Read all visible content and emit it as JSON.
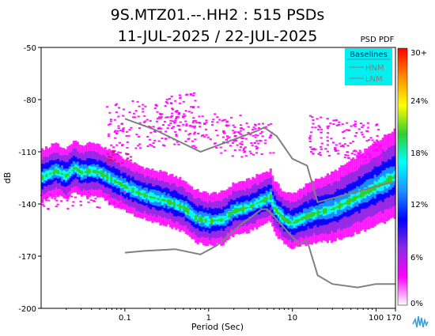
{
  "chart_data": {
    "type": "heatmap",
    "title": "9S.MTZ01.--.HH2 : 515 PSDs",
    "subtitle": "11-JUL-2025 / 22-JUL-2025",
    "xlabel": "Period (Sec)",
    "ylabel": "dB",
    "x_scale": "log",
    "xlim": [
      0.01,
      170
    ],
    "ylim": [
      -200,
      -50
    ],
    "x_ticks": [
      "0.1",
      "1",
      "10",
      "100",
      "170"
    ],
    "x_tick_values": [
      0.1,
      1,
      10,
      100,
      170
    ],
    "y_ticks": [
      "-50",
      "-80",
      "-110",
      "-140",
      "-170",
      "-200"
    ],
    "y_tick_values": [
      -50,
      -80,
      -110,
      -140,
      -170,
      -200
    ],
    "colorbar": {
      "title": "PSD PDF",
      "labels": [
        "30+",
        "24%",
        "18%",
        "12%",
        "6%",
        "0%"
      ],
      "colors": [
        "#ff0000",
        "#ff8c00",
        "#ffff00",
        "#32cd32",
        "#00ffff",
        "#1e90ff",
        "#0000ff",
        "#8a2be2",
        "#ff00ff",
        "#ffffff"
      ]
    },
    "legend": {
      "title": "Baselines",
      "entries": [
        "HNM",
        "LNM"
      ],
      "position": "top-right",
      "background": "#00f0f0"
    },
    "mode_curve": [
      [
        0.01,
        -125
      ],
      [
        0.015,
        -121
      ],
      [
        0.02,
        -124
      ],
      [
        0.025,
        -119
      ],
      [
        0.03,
        -122
      ],
      [
        0.04,
        -121
      ],
      [
        0.05,
        -122
      ],
      [
        0.07,
        -126
      ],
      [
        0.1,
        -130
      ],
      [
        0.15,
        -134
      ],
      [
        0.2,
        -136
      ],
      [
        0.3,
        -138
      ],
      [
        0.5,
        -142
      ],
      [
        0.7,
        -148
      ],
      [
        1.0,
        -150
      ],
      [
        1.5,
        -149
      ],
      [
        2.0,
        -144
      ],
      [
        3.0,
        -142
      ],
      [
        4.0,
        -139
      ],
      [
        5.0,
        -137
      ],
      [
        5.5,
        -136
      ],
      [
        6.0,
        -142
      ],
      [
        7.0,
        -146
      ],
      [
        8.0,
        -149
      ],
      [
        10.0,
        -151
      ],
      [
        15.0,
        -147
      ],
      [
        20.0,
        -145
      ],
      [
        30.0,
        -143
      ],
      [
        50.0,
        -138
      ],
      [
        100.0,
        -130
      ],
      [
        170.0,
        -124
      ]
    ],
    "baselines": [
      {
        "name": "HNM",
        "points": [
          [
            0.1,
            -91
          ],
          [
            0.22,
            -97
          ],
          [
            0.8,
            -110
          ],
          [
            3.8,
            -98
          ],
          [
            4.6,
            -96
          ],
          [
            6.5,
            -101
          ],
          [
            10.0,
            -114
          ],
          [
            15.0,
            -118
          ],
          [
            20.0,
            -139
          ],
          [
            170.0,
            -127
          ]
        ]
      },
      {
        "name": "LNM",
        "points": [
          [
            0.1,
            -168
          ],
          [
            0.17,
            -167
          ],
          [
            0.4,
            -166
          ],
          [
            0.8,
            -169
          ],
          [
            1.24,
            -164
          ],
          [
            2.4,
            -152
          ],
          [
            4.3,
            -143
          ],
          [
            5.0,
            -143
          ],
          [
            6.0,
            -147
          ],
          [
            10.0,
            -159
          ],
          [
            12.0,
            -163
          ],
          [
            15.0,
            -161
          ],
          [
            20.0,
            -181
          ],
          [
            30.0,
            -186
          ],
          [
            60.0,
            -188
          ],
          [
            100.0,
            -186
          ],
          [
            170.0,
            -186
          ]
        ]
      }
    ]
  }
}
